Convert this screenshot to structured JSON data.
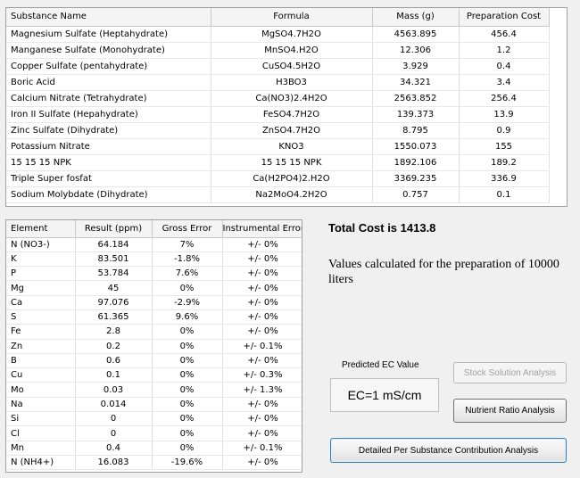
{
  "substances": {
    "columns": [
      "Substance Name",
      "Formula",
      "Mass (g)",
      "Preparation Cost"
    ],
    "rows": [
      [
        "Magnesium Sulfate (Heptahydrate)",
        "MgSO4.7H2O",
        "4563.895",
        "456.4"
      ],
      [
        "Manganese Sulfate (Monohydrate)",
        "MnSO4.H2O",
        "12.306",
        "1.2"
      ],
      [
        "Copper Sulfate (pentahydrate)",
        "CuSO4.5H2O",
        "3.929",
        "0.4"
      ],
      [
        "Boric Acid",
        "H3BO3",
        "34.321",
        "3.4"
      ],
      [
        "Calcium Nitrate (Tetrahydrate)",
        "Ca(NO3)2.4H2O",
        "2563.852",
        "256.4"
      ],
      [
        "Iron II Sulfate (Hepahydrate)",
        "FeSO4.7H2O",
        "139.373",
        "13.9"
      ],
      [
        "Zinc Sulfate (Dihydrate)",
        "ZnSO4.7H2O",
        "8.795",
        "0.9"
      ],
      [
        "Potassium Nitrate",
        "KNO3",
        "1550.073",
        "155"
      ],
      [
        "15 15 15 NPK",
        "15 15 15 NPK",
        "1892.106",
        "189.2"
      ],
      [
        "Triple Super fosfat",
        "Ca(H2PO4)2.H2O",
        "3369.235",
        "336.9"
      ],
      [
        "Sodium Molybdate (Dihydrate)",
        "Na2MoO4.2H2O",
        "0.757",
        "0.1"
      ]
    ]
  },
  "elements": {
    "columns": [
      "Element",
      "Result (ppm)",
      "Gross Error",
      "Instrumental Error"
    ],
    "rows": [
      [
        "N (NO3-)",
        "64.184",
        "7%",
        "+/- 0%"
      ],
      [
        "K",
        "83.501",
        "-1.8%",
        "+/- 0%"
      ],
      [
        "P",
        "53.784",
        "7.6%",
        "+/- 0%"
      ],
      [
        "Mg",
        "45",
        "0%",
        "+/- 0%"
      ],
      [
        "Ca",
        "97.076",
        "-2.9%",
        "+/- 0%"
      ],
      [
        "S",
        "61.365",
        "9.6%",
        "+/- 0%"
      ],
      [
        "Fe",
        "2.8",
        "0%",
        "+/- 0%"
      ],
      [
        "Zn",
        "0.2",
        "0%",
        "+/- 0.1%"
      ],
      [
        "B",
        "0.6",
        "0%",
        "+/- 0%"
      ],
      [
        "Cu",
        "0.1",
        "0%",
        "+/- 0.3%"
      ],
      [
        "Mo",
        "0.03",
        "0%",
        "+/- 1.3%"
      ],
      [
        "Na",
        "0.014",
        "0%",
        "+/- 0%"
      ],
      [
        "Si",
        "0",
        "0%",
        "+/- 0%"
      ],
      [
        "Cl",
        "0",
        "0%",
        "+/- 0%"
      ],
      [
        "Mn",
        "0.4",
        "0%",
        "+/- 0.1%"
      ],
      [
        "N (NH4+)",
        "16.083",
        "-19.6%",
        "+/- 0%"
      ]
    ]
  },
  "summary": {
    "total_cost": "Total Cost is 1413.8",
    "values_note": "Values calculated for the preparation of 10000 liters"
  },
  "ec": {
    "label": "Predicted EC Value",
    "value": "EC=1 mS/cm"
  },
  "buttons": {
    "stock_solution": "Stock Solution Analysis",
    "nutrient_ratio": "Nutrient Ratio Analysis",
    "detailed": "Detailed Per Substance Contribution Analysis"
  }
}
